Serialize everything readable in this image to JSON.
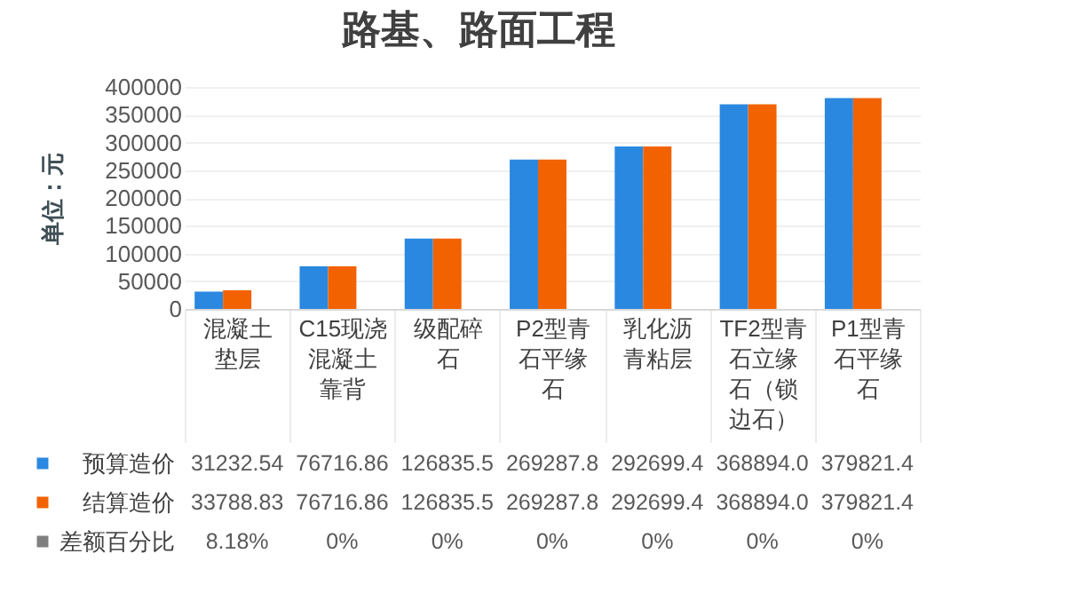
{
  "chart_data": {
    "type": "bar",
    "title": "路基、路面工程",
    "ylabel": "单位：元",
    "categories": [
      "混凝土垫层",
      "C15现浇混凝土靠背",
      "级配碎石",
      "P2型青石平缘石",
      "乳化沥青粘层",
      "TF2型青石立缘石（锁边石）",
      "P1型青石平缘石"
    ],
    "series": [
      {
        "name": "预算造价",
        "color": "#2a88e0",
        "values": [
          31232.54,
          76716.86,
          126835.5,
          269287.8,
          292699.4,
          368894.0,
          379821.4
        ],
        "value_labels": [
          "31232.54",
          "76716.86",
          "126835.5",
          "269287.8",
          "292699.4",
          "368894.0",
          "379821.4"
        ]
      },
      {
        "name": "结算造价",
        "color": "#f26200",
        "values": [
          33788.83,
          76716.86,
          126835.5,
          269287.8,
          292699.4,
          368894.0,
          379821.4
        ],
        "value_labels": [
          "33788.83",
          "76716.86",
          "126835.5",
          "269287.8",
          "292699.4",
          "368894.0",
          "379821.4"
        ]
      },
      {
        "name": "差额百分比",
        "color": "#7f7f7f",
        "values": [
          8.18,
          0,
          0,
          0,
          0,
          0,
          0
        ],
        "value_labels": [
          "8.18%",
          "0%",
          "0%",
          "0%",
          "0%",
          "0%",
          "0%"
        ]
      }
    ],
    "ylim": [
      0,
      400000
    ],
    "yticks": [
      0,
      50000,
      100000,
      150000,
      200000,
      250000,
      300000,
      350000,
      400000
    ],
    "grid": "y",
    "legend": "bottom"
  }
}
